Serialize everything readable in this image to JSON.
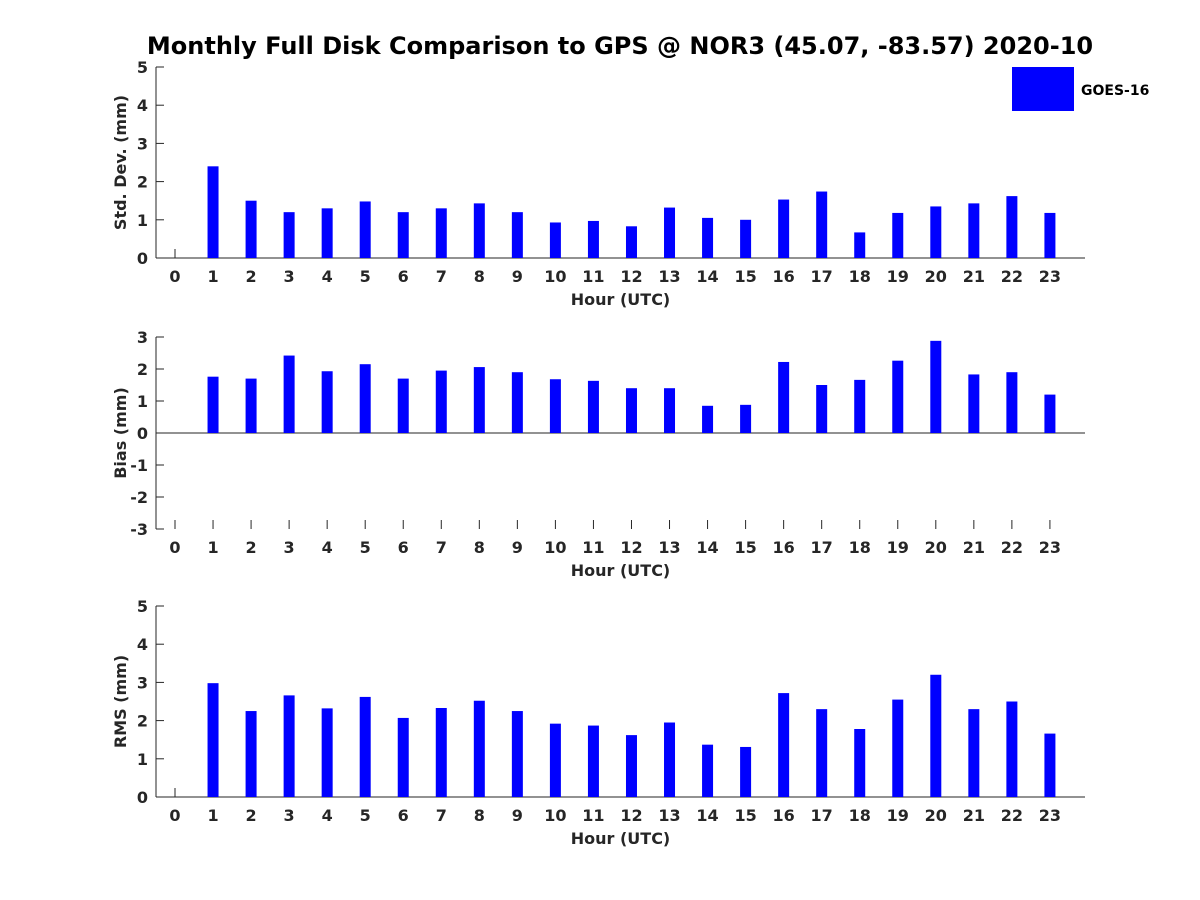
{
  "figure_title": "Monthly Full Disk Comparison to GPS @ NOR3 (45.07, -83.57) 2020-10",
  "legend": {
    "label": "GOES-16",
    "color": "#0000ff",
    "placement": "top-right"
  },
  "chart_data": [
    {
      "type": "bar",
      "name": "std",
      "xlabel": "Hour (UTC)",
      "ylabel": "Std. Dev. (mm)",
      "ylim": [
        0,
        5
      ],
      "yticks": [
        0,
        1,
        2,
        3,
        4,
        5
      ],
      "categories": [
        "0",
        "1",
        "2",
        "3",
        "4",
        "5",
        "6",
        "7",
        "8",
        "9",
        "10",
        "11",
        "12",
        "13",
        "14",
        "15",
        "16",
        "17",
        "18",
        "19",
        "20",
        "21",
        "22",
        "23"
      ],
      "series": [
        {
          "name": "GOES-16",
          "color": "#0000ff",
          "values": [
            null,
            2.4,
            1.5,
            1.2,
            1.3,
            1.48,
            1.2,
            1.3,
            1.43,
            1.2,
            0.93,
            0.97,
            0.83,
            1.32,
            1.05,
            1.0,
            1.53,
            1.74,
            0.67,
            1.18,
            1.35,
            1.43,
            1.62,
            1.18
          ]
        }
      ]
    },
    {
      "type": "bar",
      "name": "bias",
      "xlabel": "Hour (UTC)",
      "ylabel": "Bias (mm)",
      "ylim": [
        -3,
        3
      ],
      "yticks": [
        -3,
        -2,
        -1,
        0,
        1,
        2,
        3
      ],
      "categories": [
        "0",
        "1",
        "2",
        "3",
        "4",
        "5",
        "6",
        "7",
        "8",
        "9",
        "10",
        "11",
        "12",
        "13",
        "14",
        "15",
        "16",
        "17",
        "18",
        "19",
        "20",
        "21",
        "22",
        "23"
      ],
      "series": [
        {
          "name": "GOES-16",
          "color": "#0000ff",
          "values": [
            null,
            1.76,
            1.7,
            2.42,
            1.93,
            2.15,
            1.7,
            1.95,
            2.06,
            1.9,
            1.68,
            1.63,
            1.4,
            1.4,
            0.85,
            0.88,
            2.22,
            1.5,
            1.66,
            2.26,
            2.88,
            1.83,
            1.9,
            1.2
          ]
        }
      ]
    },
    {
      "type": "bar",
      "name": "rms",
      "xlabel": "Hour (UTC)",
      "ylabel": "RMS (mm)",
      "ylim": [
        0,
        5
      ],
      "yticks": [
        0,
        1,
        2,
        3,
        4,
        5
      ],
      "categories": [
        "0",
        "1",
        "2",
        "3",
        "4",
        "5",
        "6",
        "7",
        "8",
        "9",
        "10",
        "11",
        "12",
        "13",
        "14",
        "15",
        "16",
        "17",
        "18",
        "19",
        "20",
        "21",
        "22",
        "23"
      ],
      "series": [
        {
          "name": "GOES-16",
          "color": "#0000ff",
          "values": [
            null,
            2.98,
            2.25,
            2.66,
            2.32,
            2.62,
            2.07,
            2.33,
            2.52,
            2.25,
            1.92,
            1.87,
            1.62,
            1.95,
            1.37,
            1.31,
            2.72,
            2.3,
            1.78,
            2.55,
            3.2,
            2.3,
            2.5,
            1.66
          ]
        }
      ]
    }
  ]
}
